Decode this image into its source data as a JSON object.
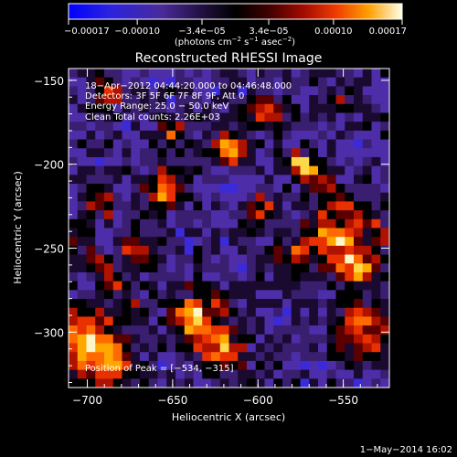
{
  "chart_data": {
    "type": "heatmap",
    "title": "Reconstructed RHESSI Image",
    "xlabel": "Heliocentric X (arcsec)",
    "ylabel": "Heliocentric Y (arcsec)",
    "xlim": [
      -711,
      -523
    ],
    "ylim": [
      -333,
      -143
    ],
    "x_ticks": [
      -700,
      -650,
      -600,
      -550
    ],
    "x_tick_labels": [
      "−700",
      "−650",
      "−600",
      "−550"
    ],
    "y_ticks": [
      -300,
      -250,
      -200,
      -150
    ],
    "y_tick_labels": [
      "−300",
      "−250",
      "−200",
      "−150"
    ],
    "colorbar": {
      "range": [
        -0.00017,
        0.00017
      ],
      "ticks": [
        -0.00017,
        -0.0001,
        -3.4e-05,
        3.4e-05,
        0.0001,
        0.00017
      ],
      "tick_labels": [
        "−0.00017",
        "−0.00010",
        "−3.4e−05",
        "3.4e−05",
        "0.00010",
        "0.00017"
      ],
      "units_prefix": "(photons cm",
      "units_exp1": "−2",
      "units_mid": " s",
      "units_exp2": "−1",
      "units_mid2": " asec",
      "units_exp3": "−2",
      "units_suffix": ")",
      "colors": {
        "neg_far": "#1a1aff",
        "neg_mid": "#4b2fd6",
        "neg_near": "#3a1a8a",
        "zero": "#000000",
        "pos_1": "#8b0000",
        "pos_2": "#e02000",
        "pos_3": "#ff7a00",
        "pos_4": "#ffd000",
        "pos_max": "#fff8d0"
      }
    },
    "annotations": [
      "18−Apr−2012 04:44:20.000 to 04:46:48.000",
      "Detectors: 3F 5F 6F 7F 8F 9F, Att 0",
      "Energy Range: 25.0 − 50.0 keV",
      "Clean     Total counts: 2.26E+03"
    ],
    "peak_label": "Position of Peak = [−534, −315]",
    "footer": "1−May−2014 16:02"
  }
}
